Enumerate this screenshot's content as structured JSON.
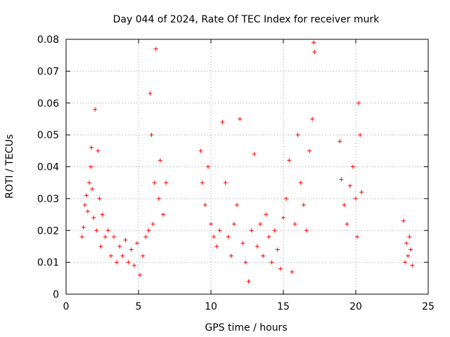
{
  "chart_data": {
    "type": "scatter",
    "title": "Day 044 of 2024, Rate Of TEC Index for receiver murk",
    "xlabel": "GPS time / hours",
    "ylabel": "ROTI / TECUs",
    "xlim": [
      0,
      25
    ],
    "ylim": [
      0,
      0.08
    ],
    "x_ticks": [
      0,
      5,
      10,
      15,
      20,
      25
    ],
    "x_tick_labels": [
      "0",
      "5",
      "10",
      "15",
      "20",
      "25"
    ],
    "y_ticks": [
      0,
      0.01,
      0.02,
      0.03,
      0.04,
      0.05,
      0.06,
      0.07,
      0.08
    ],
    "y_tick_labels": [
      "0",
      "0.01",
      "0.02",
      "0.03",
      "0.04",
      "0.05",
      "0.06",
      "0.07",
      "0.08"
    ],
    "grid": true,
    "marker": "plus",
    "color": "#ff0000",
    "series": [
      {
        "points": [
          [
            1.1,
            0.018
          ],
          [
            1.2,
            0.021
          ],
          [
            1.3,
            0.028
          ],
          [
            1.4,
            0.031
          ],
          [
            1.5,
            0.026
          ],
          [
            1.6,
            0.035
          ],
          [
            1.7,
            0.04
          ],
          [
            1.75,
            0.046
          ],
          [
            1.8,
            0.033
          ],
          [
            1.9,
            0.024
          ],
          [
            2.0,
            0.058
          ],
          [
            2.1,
            0.02
          ],
          [
            2.2,
            0.045
          ],
          [
            2.3,
            0.03
          ],
          [
            2.4,
            0.015
          ],
          [
            2.5,
            0.025
          ],
          [
            2.7,
            0.018
          ],
          [
            2.9,
            0.02
          ],
          [
            3.1,
            0.012
          ],
          [
            3.3,
            0.018
          ],
          [
            3.5,
            0.01
          ],
          [
            3.7,
            0.015
          ],
          [
            3.9,
            0.012
          ],
          [
            4.1,
            0.017
          ],
          [
            4.3,
            0.01
          ],
          [
            4.5,
            0.014
          ],
          [
            4.7,
            0.009
          ],
          [
            4.9,
            0.016
          ],
          [
            5.1,
            0.006
          ],
          [
            5.3,
            0.012
          ],
          [
            5.5,
            0.018
          ],
          [
            5.7,
            0.02
          ],
          [
            5.8,
            0.063
          ],
          [
            5.9,
            0.05
          ],
          [
            6.0,
            0.022
          ],
          [
            6.1,
            0.035
          ],
          [
            6.2,
            0.077
          ],
          [
            6.4,
            0.03
          ],
          [
            6.5,
            0.042
          ],
          [
            6.7,
            0.025
          ],
          [
            6.9,
            0.035
          ],
          [
            9.3,
            0.045
          ],
          [
            9.4,
            0.035
          ],
          [
            9.6,
            0.028
          ],
          [
            9.8,
            0.04
          ],
          [
            10.0,
            0.022
          ],
          [
            10.2,
            0.018
          ],
          [
            10.4,
            0.015
          ],
          [
            10.6,
            0.02
          ],
          [
            10.8,
            0.054
          ],
          [
            11.0,
            0.035
          ],
          [
            11.2,
            0.018
          ],
          [
            11.4,
            0.012
          ],
          [
            11.6,
            0.022
          ],
          [
            11.8,
            0.028
          ],
          [
            12.0,
            0.055
          ],
          [
            12.2,
            0.016
          ],
          [
            12.4,
            0.01
          ],
          [
            12.6,
            0.004
          ],
          [
            12.8,
            0.02
          ],
          [
            13.0,
            0.044
          ],
          [
            13.2,
            0.015
          ],
          [
            13.4,
            0.022
          ],
          [
            13.6,
            0.012
          ],
          [
            13.8,
            0.025
          ],
          [
            14.0,
            0.018
          ],
          [
            14.2,
            0.01
          ],
          [
            14.4,
            0.02
          ],
          [
            14.6,
            0.014
          ],
          [
            14.8,
            0.008
          ],
          [
            15.0,
            0.024
          ],
          [
            15.2,
            0.03
          ],
          [
            15.4,
            0.042
          ],
          [
            15.6,
            0.007
          ],
          [
            15.8,
            0.022
          ],
          [
            16.0,
            0.05
          ],
          [
            16.2,
            0.035
          ],
          [
            16.4,
            0.028
          ],
          [
            16.6,
            0.02
          ],
          [
            16.8,
            0.045
          ],
          [
            17.0,
            0.055
          ],
          [
            17.1,
            0.079
          ],
          [
            17.15,
            0.076
          ],
          [
            18.9,
            0.048
          ],
          [
            19.0,
            0.036
          ],
          [
            19.2,
            0.028
          ],
          [
            19.4,
            0.022
          ],
          [
            19.6,
            0.034
          ],
          [
            19.8,
            0.04
          ],
          [
            20.0,
            0.03
          ],
          [
            20.1,
            0.018
          ],
          [
            20.2,
            0.06
          ],
          [
            20.3,
            0.05
          ],
          [
            20.4,
            0.032
          ],
          [
            23.3,
            0.023
          ],
          [
            23.4,
            0.01
          ],
          [
            23.5,
            0.016
          ],
          [
            23.6,
            0.012
          ],
          [
            23.7,
            0.018
          ],
          [
            23.8,
            0.014
          ],
          [
            23.9,
            0.009
          ]
        ]
      }
    ]
  }
}
